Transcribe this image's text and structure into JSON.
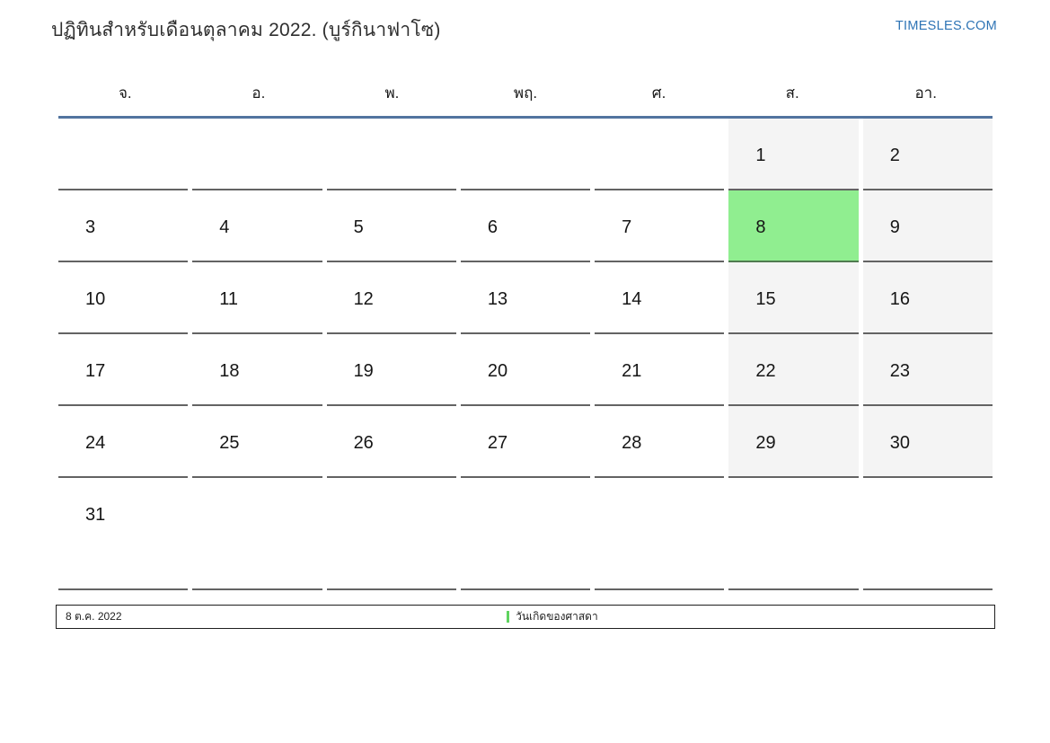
{
  "page": {
    "title": "ปฏิทินสำหรับเดือนตุลาคม 2022. (บูร์กินาฟาโซ)",
    "site_link": "TIMESLES.COM"
  },
  "calendar": {
    "weekday_headers": [
      "จ.",
      "อ.",
      "พ.",
      "พฤ.",
      "ศ.",
      "ส.",
      "อา."
    ],
    "weeks": [
      [
        "",
        "",
        "",
        "",
        "",
        "1",
        "2"
      ],
      [
        "3",
        "4",
        "5",
        "6",
        "7",
        "8",
        "9"
      ],
      [
        "10",
        "11",
        "12",
        "13",
        "14",
        "15",
        "16"
      ],
      [
        "17",
        "18",
        "19",
        "20",
        "21",
        "22",
        "23"
      ],
      [
        "24",
        "25",
        "26",
        "27",
        "28",
        "29",
        "30"
      ],
      [
        "31",
        "",
        "",
        "",
        "",
        "",
        ""
      ]
    ],
    "weekend_columns": [
      5,
      6
    ],
    "highlighted_day": "8"
  },
  "footer": {
    "date_label": "8 ต.ค. 2022",
    "legend": [
      {
        "label": "วันเกิดของศาสดา",
        "color": "#5fd35f"
      }
    ]
  },
  "colors": {
    "accent_line": "#52749f",
    "weekend_bg": "#f4f4f4",
    "highlight_bg": "#90ee90",
    "cell_border": "#636363",
    "link_blue": "#2e74b5"
  }
}
